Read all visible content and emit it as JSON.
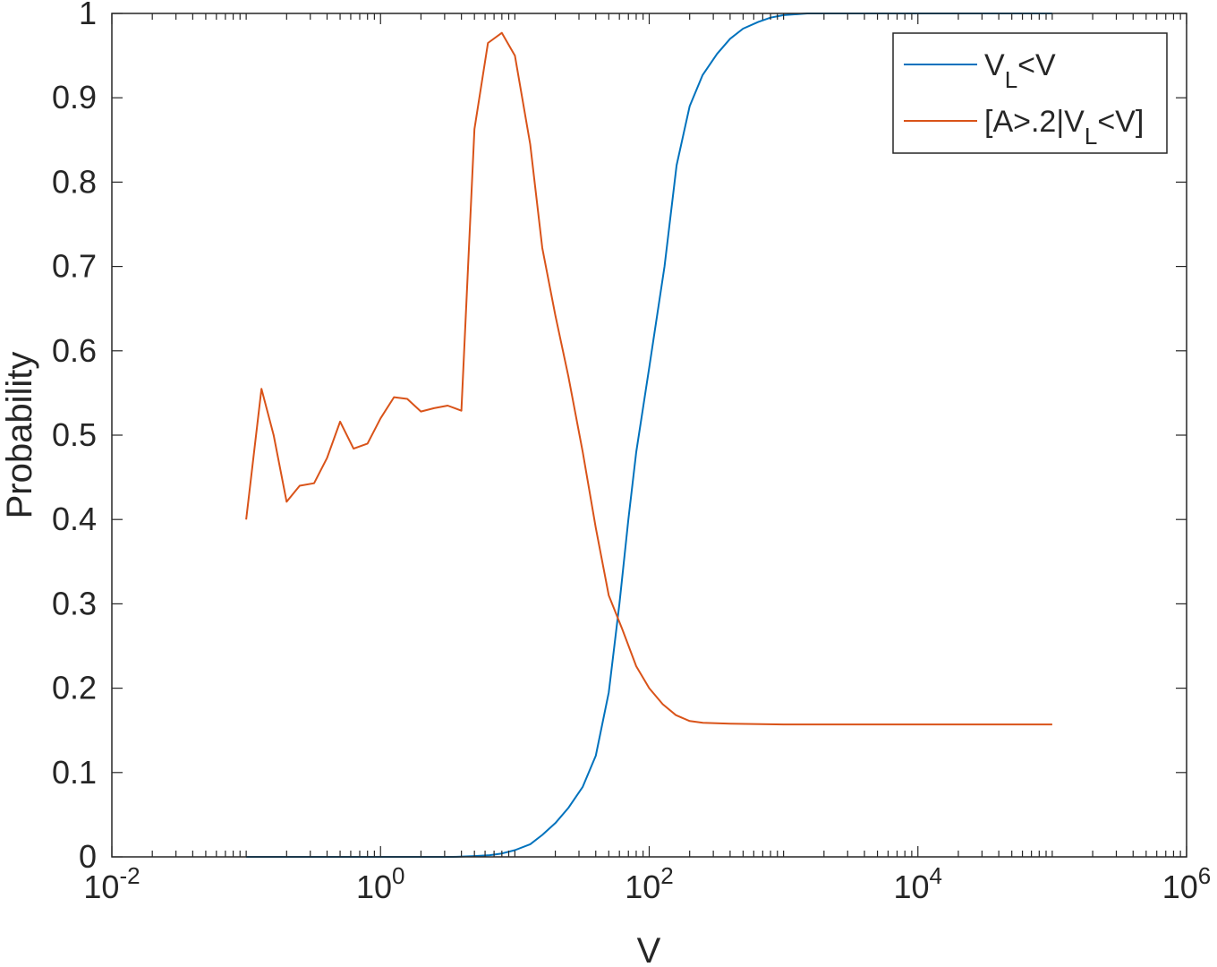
{
  "chart_data": {
    "type": "line",
    "title": "",
    "xlabel": "V",
    "ylabel": "Probability",
    "xscale": "log",
    "xlim": [
      0.01,
      1000000
    ],
    "ylim": [
      0,
      1
    ],
    "x_ticks": [
      {
        "value": 0.01,
        "base": "10",
        "exp": "-2"
      },
      {
        "value": 1,
        "base": "10",
        "exp": "0"
      },
      {
        "value": 100,
        "base": "10",
        "exp": "2"
      },
      {
        "value": 10000,
        "base": "10",
        "exp": "4"
      },
      {
        "value": 1000000,
        "base": "10",
        "exp": "6"
      }
    ],
    "y_ticks": [
      "0",
      "0.1",
      "0.2",
      "0.3",
      "0.4",
      "0.5",
      "0.6",
      "0.7",
      "0.8",
      "0.9",
      "1"
    ],
    "grid": false,
    "legend_position": "top-right",
    "series": [
      {
        "name": "V_L<V",
        "legend": {
          "main": "V",
          "sub": "L",
          "rest": "<V"
        },
        "color": "#0072BD",
        "points": [
          [
            0.1,
            0
          ],
          [
            1,
            0
          ],
          [
            3.5,
            0
          ],
          [
            5,
            0.001
          ],
          [
            6.5,
            0.002
          ],
          [
            8,
            0.004
          ],
          [
            10,
            0.008
          ],
          [
            13,
            0.015
          ],
          [
            16,
            0.026
          ],
          [
            20,
            0.04
          ],
          [
            25,
            0.058
          ],
          [
            32,
            0.083
          ],
          [
            40,
            0.12
          ],
          [
            50,
            0.195
          ],
          [
            60,
            0.3
          ],
          [
            70,
            0.4
          ],
          [
            80,
            0.48
          ],
          [
            100,
            0.58
          ],
          [
            130,
            0.7
          ],
          [
            160,
            0.82
          ],
          [
            200,
            0.89
          ],
          [
            250,
            0.927
          ],
          [
            320,
            0.952
          ],
          [
            400,
            0.97
          ],
          [
            500,
            0.982
          ],
          [
            650,
            0.99
          ],
          [
            800,
            0.995
          ],
          [
            1000,
            0.998
          ],
          [
            1500,
            1
          ],
          [
            100000,
            1
          ]
        ]
      },
      {
        "name": "[A>.2|V_L<V]",
        "legend": {
          "main": "[A>.2|V",
          "sub": "L",
          "rest": "<V]"
        },
        "color": "#D95319",
        "points": [
          [
            0.1,
            0.4
          ],
          [
            0.13,
            0.555
          ],
          [
            0.16,
            0.5
          ],
          [
            0.2,
            0.421
          ],
          [
            0.25,
            0.44
          ],
          [
            0.32,
            0.443
          ],
          [
            0.4,
            0.473
          ],
          [
            0.5,
            0.516
          ],
          [
            0.63,
            0.484
          ],
          [
            0.8,
            0.49
          ],
          [
            1.0,
            0.52
          ],
          [
            1.26,
            0.545
          ],
          [
            1.58,
            0.543
          ],
          [
            2.0,
            0.528
          ],
          [
            2.5,
            0.532
          ],
          [
            3.16,
            0.535
          ],
          [
            4.0,
            0.529
          ],
          [
            5.0,
            0.863
          ],
          [
            6.3,
            0.965
          ],
          [
            8.0,
            0.977
          ],
          [
            10,
            0.95
          ],
          [
            13,
            0.845
          ],
          [
            16,
            0.722
          ],
          [
            20,
            0.642
          ],
          [
            25,
            0.57
          ],
          [
            32,
            0.48
          ],
          [
            40,
            0.39
          ],
          [
            50,
            0.31
          ],
          [
            63,
            0.27
          ],
          [
            80,
            0.226
          ],
          [
            100,
            0.2
          ],
          [
            126,
            0.181
          ],
          [
            158,
            0.168
          ],
          [
            200,
            0.161
          ],
          [
            251,
            0.159
          ],
          [
            400,
            0.158
          ],
          [
            1000,
            0.157
          ],
          [
            100000,
            0.157
          ]
        ]
      }
    ]
  }
}
